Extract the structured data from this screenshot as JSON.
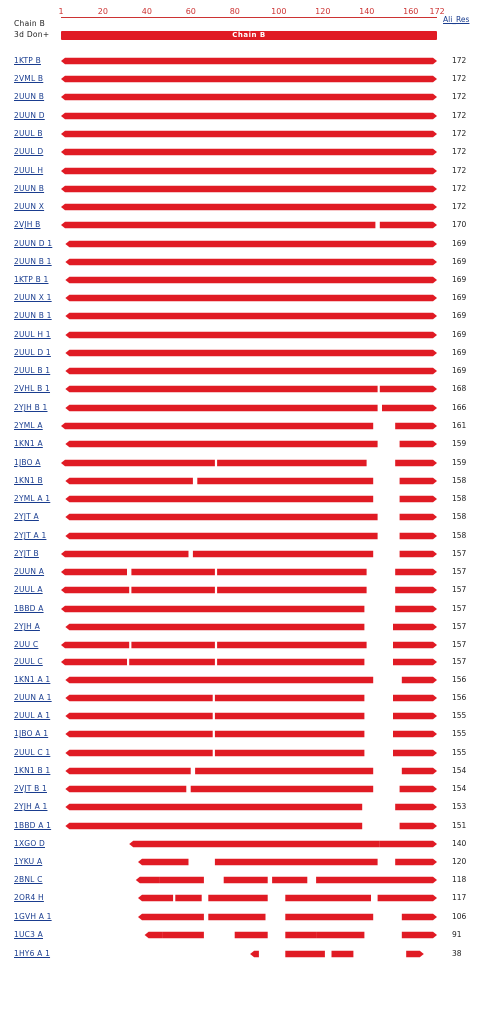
{
  "header": {
    "chain_label": "Chain B",
    "source_label": "3d Don+",
    "ali_res_label": "Ali_Res",
    "chain_bar_label": "Chain B",
    "axis_ticks": [
      "1",
      "20",
      "40",
      "60",
      "80",
      "100",
      "120",
      "140",
      "160",
      "172"
    ]
  },
  "colors": {
    "bar": "#e01b24",
    "link": "#1a3d8f",
    "tick": "#cc3333"
  },
  "rows": [
    {
      "label": "1KTP_B",
      "count": "172",
      "segs": [
        [
          1,
          172
        ]
      ]
    },
    {
      "label": "2VML_B",
      "count": "172",
      "segs": [
        [
          1,
          172
        ]
      ]
    },
    {
      "label": "2UUN_B",
      "count": "172",
      "segs": [
        [
          1,
          172
        ]
      ]
    },
    {
      "label": "2UUN_D",
      "count": "172",
      "segs": [
        [
          1,
          172
        ]
      ]
    },
    {
      "label": "2UUL_B",
      "count": "172",
      "segs": [
        [
          1,
          172
        ]
      ]
    },
    {
      "label": "2UUL_D",
      "count": "172",
      "segs": [
        [
          1,
          172
        ]
      ]
    },
    {
      "label": "2UUL_H",
      "count": "172",
      "segs": [
        [
          1,
          172
        ]
      ]
    },
    {
      "label": "2UUN_B",
      "count": "172",
      "segs": [
        [
          1,
          172
        ]
      ]
    },
    {
      "label": "2UUN_X",
      "count": "172",
      "segs": [
        [
          1,
          172
        ]
      ]
    },
    {
      "label": "2VJH_B",
      "count": "170",
      "segs": [
        [
          1,
          144
        ],
        [
          146,
          172
        ]
      ]
    },
    {
      "label": "2UUN_D_1",
      "count": "169",
      "segs": [
        [
          3,
          172
        ]
      ]
    },
    {
      "label": "2UUN_B_1",
      "count": "169",
      "segs": [
        [
          3,
          172
        ]
      ]
    },
    {
      "label": "1KTP_B_1",
      "count": "169",
      "segs": [
        [
          3,
          172
        ]
      ]
    },
    {
      "label": "2UUN_X_1",
      "count": "169",
      "segs": [
        [
          3,
          172
        ]
      ]
    },
    {
      "label": "2UUN_B_1",
      "count": "169",
      "segs": [
        [
          3,
          172
        ]
      ]
    },
    {
      "label": "2UUL_H_1",
      "count": "169",
      "segs": [
        [
          3,
          172
        ]
      ]
    },
    {
      "label": "2UUL_D_1",
      "count": "169",
      "segs": [
        [
          3,
          172
        ]
      ]
    },
    {
      "label": "2UUL_B_1",
      "count": "169",
      "segs": [
        [
          3,
          172
        ]
      ]
    },
    {
      "label": "2VHL_B_1",
      "count": "168",
      "segs": [
        [
          3,
          145
        ],
        [
          146,
          172
        ]
      ]
    },
    {
      "label": "2YJH_B_1",
      "count": "166",
      "segs": [
        [
          3,
          145
        ],
        [
          147,
          172
        ]
      ]
    },
    {
      "label": "2YML_A",
      "count": "161",
      "segs": [
        [
          1,
          143
        ],
        [
          153,
          172
        ]
      ]
    },
    {
      "label": "1KN1_A",
      "count": "159",
      "segs": [
        [
          3,
          145
        ],
        [
          155,
          172
        ]
      ]
    },
    {
      "label": "1JBO_A",
      "count": "159",
      "segs": [
        [
          1,
          71
        ],
        [
          72,
          140
        ],
        [
          153,
          172
        ]
      ]
    },
    {
      "label": "1KN1_B",
      "count": "158",
      "segs": [
        [
          3,
          61
        ],
        [
          63,
          143
        ],
        [
          155,
          172
        ]
      ]
    },
    {
      "label": "2YML_A_1",
      "count": "158",
      "segs": [
        [
          3,
          143
        ],
        [
          155,
          172
        ]
      ]
    },
    {
      "label": "2YJT_A",
      "count": "158",
      "segs": [
        [
          3,
          145
        ],
        [
          155,
          172
        ]
      ]
    },
    {
      "label": "2YJT_A_1",
      "count": "158",
      "segs": [
        [
          3,
          145
        ],
        [
          155,
          172
        ]
      ]
    },
    {
      "label": "2YJT_B",
      "count": "157",
      "segs": [
        [
          1,
          59
        ],
        [
          61,
          143
        ],
        [
          155,
          172
        ]
      ]
    },
    {
      "label": "2UUN_A",
      "count": "157",
      "segs": [
        [
          1,
          31
        ],
        [
          33,
          71
        ],
        [
          72,
          140
        ],
        [
          153,
          172
        ]
      ]
    },
    {
      "label": "2UUL_A",
      "count": "157",
      "segs": [
        [
          1,
          32
        ],
        [
          33,
          71
        ],
        [
          72,
          140
        ],
        [
          153,
          172
        ]
      ]
    },
    {
      "label": "1BBD_A",
      "count": "157",
      "segs": [
        [
          1,
          139
        ],
        [
          153,
          172
        ]
      ]
    },
    {
      "label": "2YJH_A",
      "count": "157",
      "segs": [
        [
          3,
          139
        ],
        [
          152,
          172
        ]
      ]
    },
    {
      "label": "2UU_C",
      "count": "157",
      "segs": [
        [
          1,
          32
        ],
        [
          33,
          71
        ],
        [
          72,
          140
        ],
        [
          152,
          172
        ]
      ]
    },
    {
      "label": "2UUL_C",
      "count": "157",
      "segs": [
        [
          1,
          31
        ],
        [
          32,
          71
        ],
        [
          72,
          139
        ],
        [
          152,
          172
        ]
      ]
    },
    {
      "label": "1KN1_A_1",
      "count": "156",
      "segs": [
        [
          3,
          143
        ],
        [
          156,
          172
        ]
      ]
    },
    {
      "label": "2UUN_A_1",
      "count": "156",
      "segs": [
        [
          3,
          70
        ],
        [
          71,
          139
        ],
        [
          152,
          172
        ]
      ]
    },
    {
      "label": "2UUL_A_1",
      "count": "155",
      "segs": [
        [
          3,
          70
        ],
        [
          71,
          139
        ],
        [
          152,
          172
        ]
      ]
    },
    {
      "label": "1JBO_A_1",
      "count": "155",
      "segs": [
        [
          3,
          70
        ],
        [
          71,
          139
        ],
        [
          152,
          172
        ]
      ]
    },
    {
      "label": "2UUL_C_1",
      "count": "155",
      "segs": [
        [
          3,
          70
        ],
        [
          71,
          139
        ],
        [
          152,
          172
        ]
      ]
    },
    {
      "label": "1KN1_B_1",
      "count": "154",
      "segs": [
        [
          3,
          60
        ],
        [
          62,
          143
        ],
        [
          156,
          172
        ]
      ]
    },
    {
      "label": "2VJT_B_1",
      "count": "154",
      "segs": [
        [
          3,
          58
        ],
        [
          60,
          143
        ],
        [
          155,
          172
        ]
      ]
    },
    {
      "label": "2YJH_A_1",
      "count": "153",
      "segs": [
        [
          3,
          138
        ],
        [
          153,
          172
        ]
      ]
    },
    {
      "label": "1BBD_A_1",
      "count": "151",
      "segs": [
        [
          3,
          138
        ],
        [
          155,
          172
        ]
      ]
    },
    {
      "label": "1XGO_D",
      "count": "140",
      "segs": [
        [
          32,
          146
        ],
        [
          146,
          172
        ]
      ]
    },
    {
      "label": "1YKU_A",
      "count": "120",
      "segs": [
        [
          36,
          59
        ],
        [
          71,
          145
        ],
        [
          153,
          172
        ]
      ]
    },
    {
      "label": "2BNL_C",
      "count": "118",
      "segs": [
        [
          35,
          46
        ],
        [
          46,
          66
        ],
        [
          75,
          95
        ],
        [
          97,
          113
        ],
        [
          117,
          152
        ],
        [
          152,
          172
        ]
      ]
    },
    {
      "label": "2OR4_H",
      "count": "117",
      "segs": [
        [
          36,
          52
        ],
        [
          53,
          65
        ],
        [
          68,
          95
        ],
        [
          103,
          142
        ],
        [
          145,
          172
        ]
      ]
    },
    {
      "label": "1GVH_A_1",
      "count": "106",
      "segs": [
        [
          36,
          66
        ],
        [
          68,
          94
        ],
        [
          103,
          143
        ],
        [
          156,
          172
        ]
      ]
    },
    {
      "label": "1UC3_A",
      "count": "91",
      "segs": [
        [
          39,
          47
        ],
        [
          47,
          66
        ],
        [
          80,
          95
        ],
        [
          103,
          117
        ],
        [
          117,
          139
        ],
        [
          156,
          172
        ]
      ]
    },
    {
      "label": "1HY6_A_1",
      "count": "38",
      "segs": [
        [
          87,
          91
        ],
        [
          103,
          121
        ],
        [
          124,
          134
        ],
        [
          158,
          166
        ]
      ]
    }
  ]
}
